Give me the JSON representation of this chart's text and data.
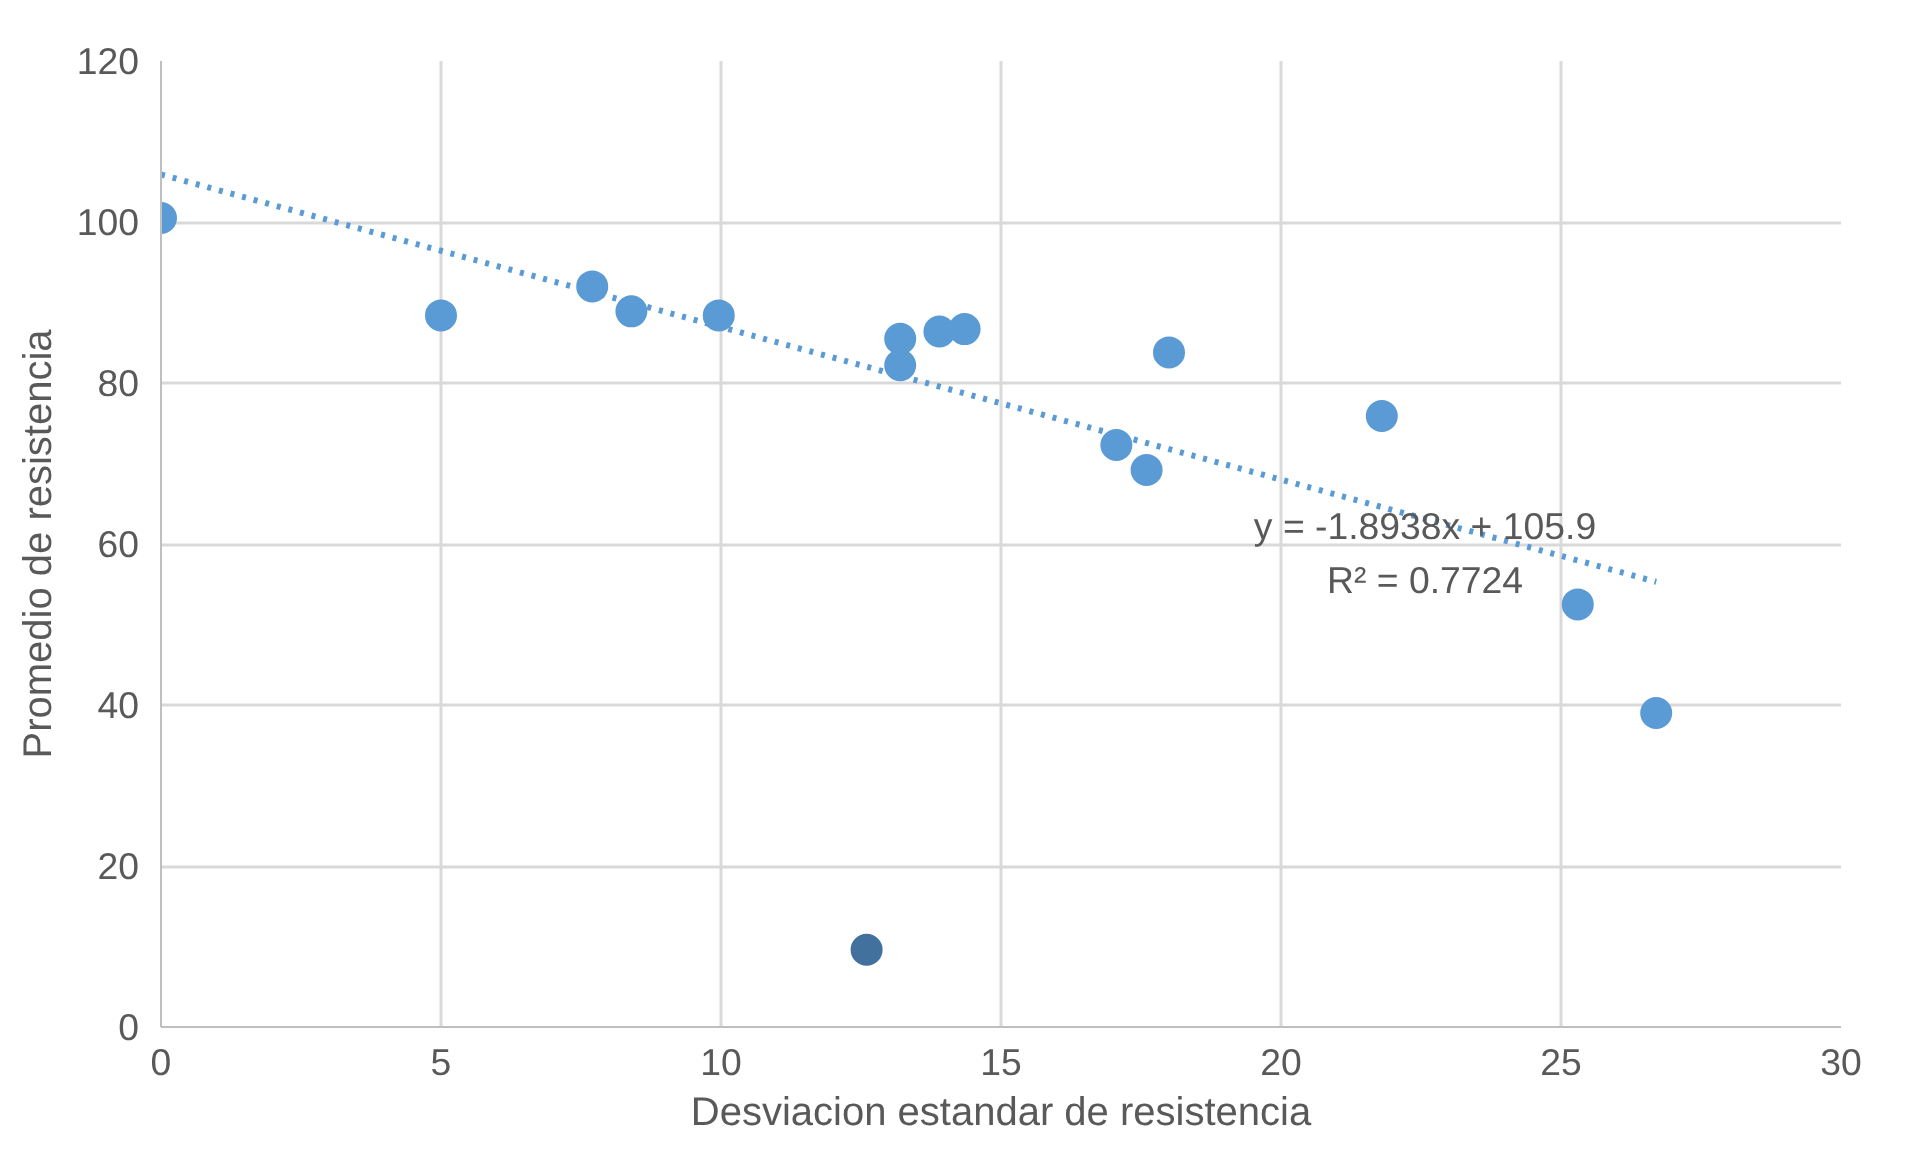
{
  "chart_data": {
    "type": "scatter",
    "xlabel": "Desviacion estandar de resistencia",
    "ylabel": "Promedio de resistencia",
    "xlim": [
      0,
      30
    ],
    "ylim": [
      0,
      120
    ],
    "xticks": [
      0,
      5,
      10,
      15,
      20,
      25,
      30
    ],
    "yticks": [
      0,
      20,
      40,
      60,
      80,
      100,
      120
    ],
    "grid": true,
    "marker": "circle",
    "series": [
      {
        "color": "#5b9bd5",
        "x": [
          0,
          5.0,
          7.7,
          8.4,
          9.96,
          13.2,
          13.2,
          13.9,
          14.35,
          17.06,
          17.6,
          18.0,
          21.8,
          25.3,
          26.7
        ],
        "values": [
          100.5,
          88.4,
          92.0,
          88.9,
          88.4,
          85.5,
          82.2,
          86.4,
          86.7,
          72.3,
          69.2,
          83.8,
          75.9,
          52.5,
          39.0
        ]
      },
      {
        "color": "#41719c",
        "x": [
          12.6
        ],
        "values": [
          9.6
        ]
      },
      {
        "type": "line",
        "color": "#5b9bd5",
        "line_style": "dotted",
        "marker": "none",
        "x": [
          0,
          26.7
        ],
        "values": [
          105.9,
          55.3
        ]
      }
    ],
    "annotations": [
      "y = -1.8938x + 105.9",
      "R² = 0.7724"
    ]
  }
}
